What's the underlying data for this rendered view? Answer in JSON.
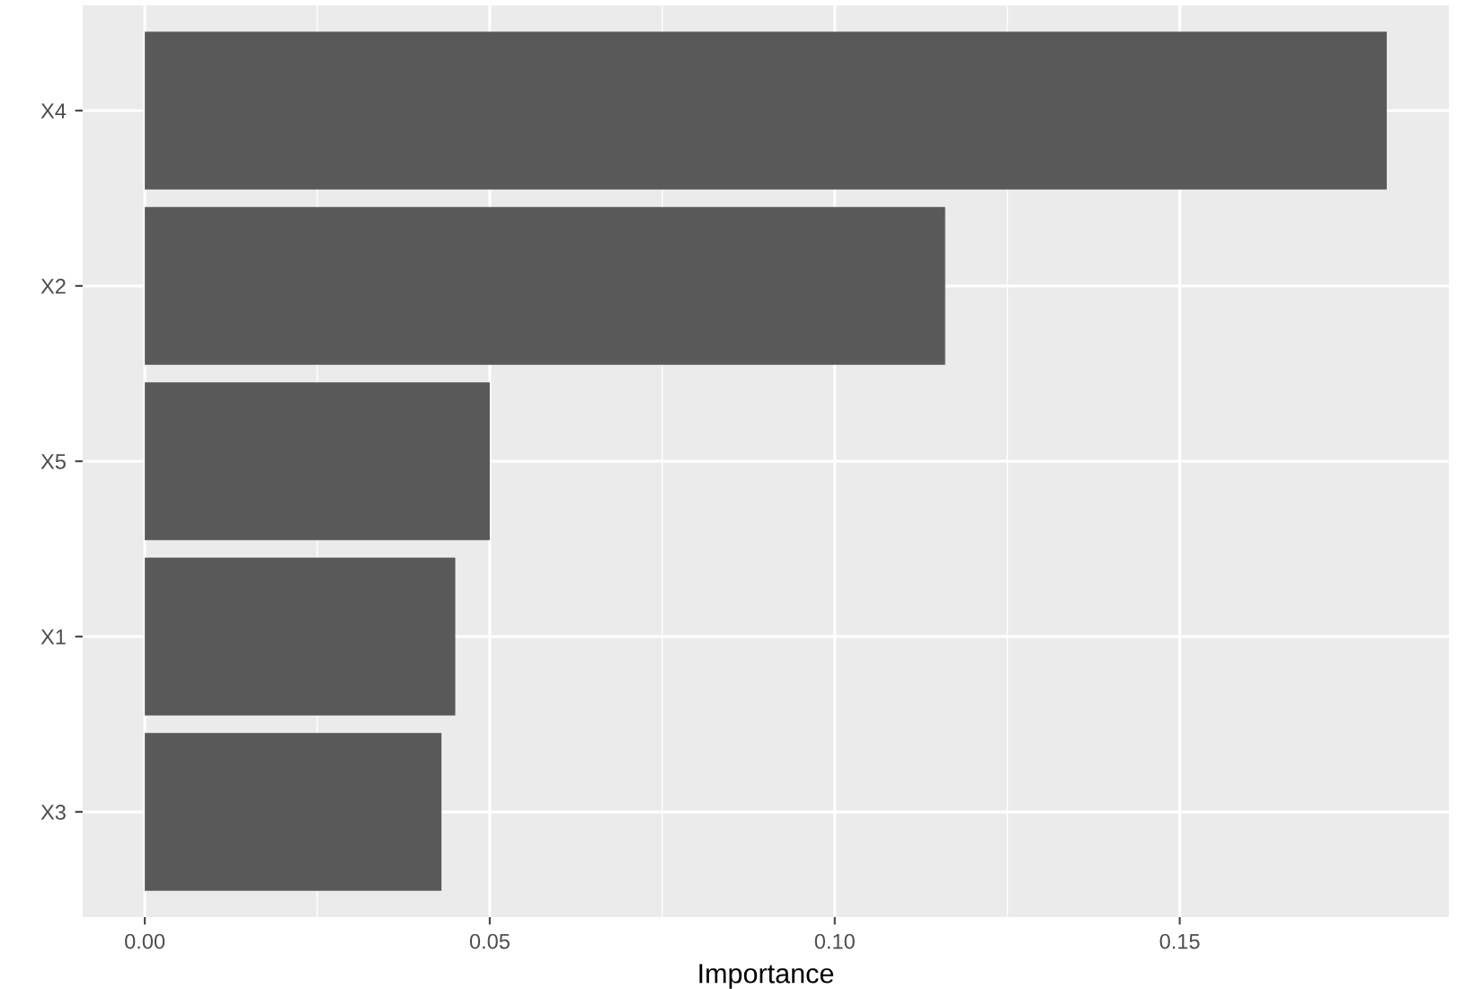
{
  "chart_data": {
    "type": "bar",
    "orientation": "horizontal",
    "xlabel": "Importance",
    "categories": [
      "X4",
      "X2",
      "X5",
      "X1",
      "X3"
    ],
    "values": [
      0.18,
      0.116,
      0.05,
      0.045,
      0.043
    ],
    "color": "#595959",
    "xlim": [
      -0.009,
      0.189
    ],
    "xticks": [
      {
        "value": 0,
        "label": "0.00"
      },
      0.05,
      {
        "value": 0.1,
        "label": "0.10"
      },
      0.15
    ],
    "grid": true
  }
}
